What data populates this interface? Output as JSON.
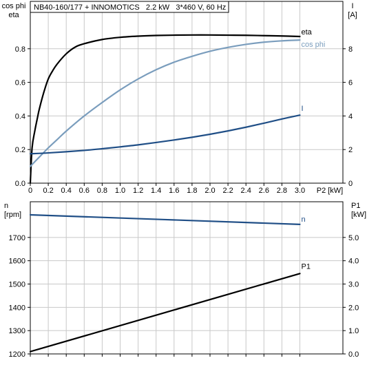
{
  "chart_data": [
    {
      "type": "line",
      "title": "NB40-160/177 + INNOMOTICS   2.2 kW   3*460 V, 60 Hz",
      "xlabel": "P2 [kW]",
      "xlim": [
        0,
        3.0
      ],
      "x_ticks": [
        "0",
        "0.2",
        "0.4",
        "0.6",
        "0.8",
        "1.0",
        "1.2",
        "1.4",
        "1.6",
        "1.8",
        "2.0",
        "2.2",
        "2.4",
        "2.6",
        "2.8",
        "3.0"
      ],
      "left_axis": {
        "label_line1": "cos phi",
        "label_line2": "eta",
        "ylim": [
          0,
          1.0
        ],
        "ticks": [
          "0.0",
          "0.2",
          "0.4",
          "0.6",
          "0.8"
        ]
      },
      "right_axis": {
        "label_line1": "I",
        "label_line2": "[A]",
        "ylim": [
          0,
          10
        ],
        "ticks": [
          "0",
          "2",
          "4",
          "6",
          "8"
        ]
      },
      "grid": true,
      "series": [
        {
          "name": "eta",
          "axis": "left",
          "color": "#000000",
          "x": [
            0.0,
            0.02,
            0.05,
            0.08,
            0.1,
            0.15,
            0.2,
            0.25,
            0.3,
            0.4,
            0.5,
            0.6,
            0.8,
            1.0,
            1.2,
            1.4,
            1.6,
            1.8,
            2.0,
            2.2,
            2.4,
            2.6,
            2.8,
            3.0
          ],
          "y": [
            0.0,
            0.21,
            0.31,
            0.39,
            0.44,
            0.54,
            0.62,
            0.67,
            0.71,
            0.77,
            0.81,
            0.83,
            0.855,
            0.868,
            0.875,
            0.879,
            0.881,
            0.882,
            0.882,
            0.881,
            0.88,
            0.878,
            0.876,
            0.873
          ]
        },
        {
          "name": "cos phi",
          "axis": "left",
          "color": "#7a9dbd",
          "x": [
            0.0,
            0.1,
            0.2,
            0.3,
            0.4,
            0.6,
            0.8,
            1.0,
            1.2,
            1.4,
            1.6,
            1.8,
            2.0,
            2.2,
            2.4,
            2.6,
            2.8,
            3.0
          ],
          "y": [
            0.1,
            0.155,
            0.21,
            0.26,
            0.31,
            0.4,
            0.48,
            0.555,
            0.62,
            0.675,
            0.72,
            0.755,
            0.785,
            0.808,
            0.826,
            0.839,
            0.847,
            0.852
          ]
        },
        {
          "name": "I",
          "axis": "right",
          "color": "#1f4e86",
          "x": [
            0.0,
            0.2,
            0.4,
            0.6,
            0.8,
            1.0,
            1.2,
            1.4,
            1.6,
            1.8,
            2.0,
            2.2,
            2.4,
            2.6,
            2.8,
            3.0
          ],
          "y": [
            1.75,
            1.8,
            1.87,
            1.95,
            2.05,
            2.16,
            2.28,
            2.42,
            2.57,
            2.73,
            2.91,
            3.11,
            3.33,
            3.57,
            3.82,
            4.05
          ]
        }
      ]
    },
    {
      "type": "line",
      "xlim": [
        0,
        3.0
      ],
      "left_axis": {
        "label_line1": "n",
        "label_line2": "[rpm]",
        "ylim": [
          1200,
          1800
        ],
        "ticks": [
          "1200",
          "1300",
          "1400",
          "1500",
          "1600",
          "1700"
        ]
      },
      "right_axis": {
        "label_line1": "P1",
        "label_line2": "[kW]",
        "ylim": [
          0,
          6.0
        ],
        "ticks": [
          "0.0",
          "1.0",
          "2.0",
          "3.0",
          "4.0",
          "5.0"
        ]
      },
      "grid": true,
      "series": [
        {
          "name": "n",
          "axis": "left",
          "color": "#1f4e86",
          "x": [
            0.0,
            3.0
          ],
          "y": [
            1797,
            1756
          ]
        },
        {
          "name": "P1",
          "axis": "right",
          "color": "#000000",
          "x": [
            0.0,
            3.0
          ],
          "y": [
            0.1,
            3.45
          ]
        }
      ]
    }
  ]
}
